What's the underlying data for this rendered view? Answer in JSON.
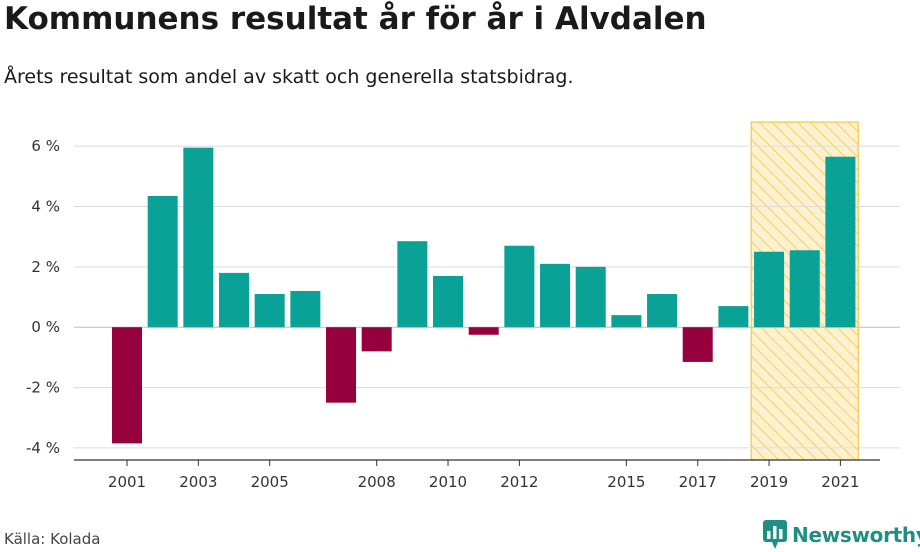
{
  "header": {
    "title": "Kommunens resultat år för år i Alvdalen",
    "subtitle": "Årets resultat som andel av skatt och generella statsbidrag."
  },
  "footer": {
    "source": "Källa: Kolada",
    "brand": "Newsworthy"
  },
  "colors": {
    "positive": "#0aa196",
    "negative": "#96003c",
    "highlight_fill": "#fdf1cf",
    "highlight_stripe": "#f5c842",
    "brand": "#1f8f84"
  },
  "icons": {
    "brand_logo": "bar-chart-speech-bubble-icon"
  },
  "chart_data": {
    "type": "bar",
    "categories": [
      "2001",
      "2002",
      "2003",
      "2004",
      "2005",
      "2006",
      "2007",
      "2008",
      "2009",
      "2010",
      "2011",
      "2012",
      "2013",
      "2014",
      "2015",
      "2016",
      "2017",
      "2018",
      "2019",
      "2020",
      "2021"
    ],
    "values": [
      -3.85,
      4.35,
      5.95,
      1.8,
      1.1,
      1.2,
      -2.5,
      -0.8,
      2.85,
      1.7,
      -0.25,
      2.7,
      2.1,
      2.0,
      0.4,
      1.1,
      -1.15,
      0.7,
      2.5,
      2.55,
      5.65
    ],
    "ylim": [
      -4.4,
      6.8
    ],
    "yticks": [
      -4,
      -2,
      0,
      2,
      4,
      6
    ],
    "ytick_labels": [
      "-4 %",
      "-2 %",
      "0 %",
      "2 %",
      "4 %",
      "6 %"
    ],
    "xtick_labels": [
      "2001",
      "2003",
      "2005",
      "2008",
      "2010",
      "2012",
      "2015",
      "2017",
      "2019",
      "2021"
    ],
    "highlight_range": [
      "2019",
      "2021"
    ],
    "grid": true
  }
}
